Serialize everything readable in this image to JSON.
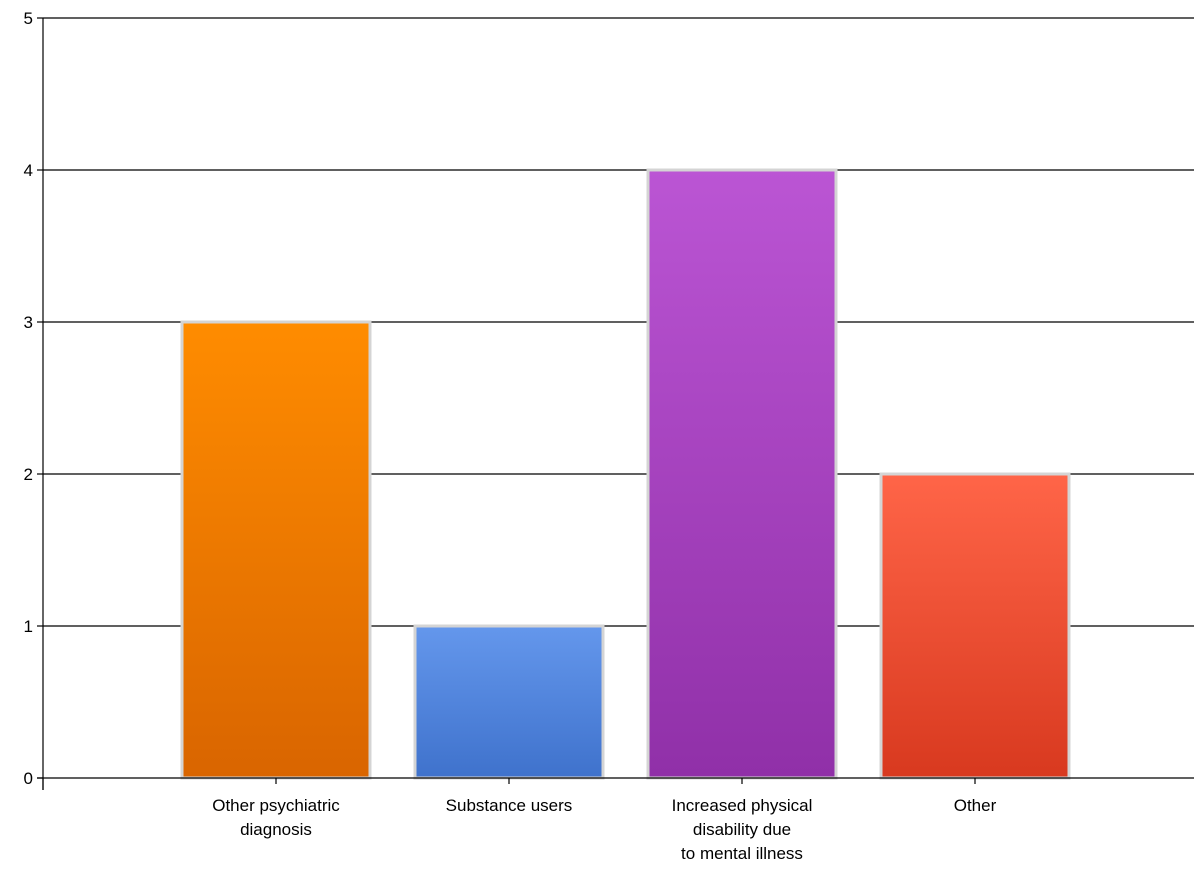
{
  "chart_data": {
    "type": "bar",
    "categories": [
      [
        "Other psychiatric",
        "diagnosis"
      ],
      [
        "Substance users"
      ],
      [
        "Increased physical",
        "disability due",
        "to mental illness"
      ],
      [
        "Other"
      ]
    ],
    "values": [
      3,
      1,
      4,
      2
    ],
    "bar_colors": [
      {
        "top": "#ff8c00",
        "bottom": "#d96500"
      },
      {
        "top": "#6497ec",
        "bottom": "#3f72cc"
      },
      {
        "top": "#bb55d4",
        "bottom": "#9030a8"
      },
      {
        "top": "#ff6548",
        "bottom": "#d8391f"
      }
    ],
    "ylim": [
      0,
      5
    ],
    "yticks": [
      "0",
      "1",
      "2",
      "3",
      "4",
      "5"
    ],
    "title": "",
    "xlabel": "",
    "ylabel": "",
    "grid": true,
    "legend": "none"
  }
}
